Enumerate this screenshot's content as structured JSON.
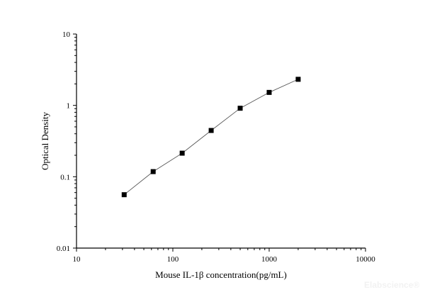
{
  "chart_data": {
    "type": "line",
    "title": "",
    "xlabel": "Mouse IL-1β concentration(pg/mL)",
    "ylabel": "Optical Density",
    "x_scale": "log",
    "y_scale": "log",
    "xlim": [
      10,
      10000
    ],
    "ylim": [
      0.01,
      10
    ],
    "x_ticks": [
      "10",
      "100",
      "1000",
      "10000"
    ],
    "y_ticks": [
      "0.01",
      "0.1",
      "1",
      "10"
    ],
    "grid": false,
    "marker": "square",
    "series": [
      {
        "x": [
          31.25,
          62.5,
          125,
          250,
          500,
          1000,
          2000
        ],
        "y": [
          0.056,
          0.118,
          0.214,
          0.445,
          0.912,
          1.52,
          2.32
        ]
      }
    ],
    "colors": {
      "line": "#555555",
      "marker": "#000000"
    }
  },
  "watermark": "Elabscience®"
}
